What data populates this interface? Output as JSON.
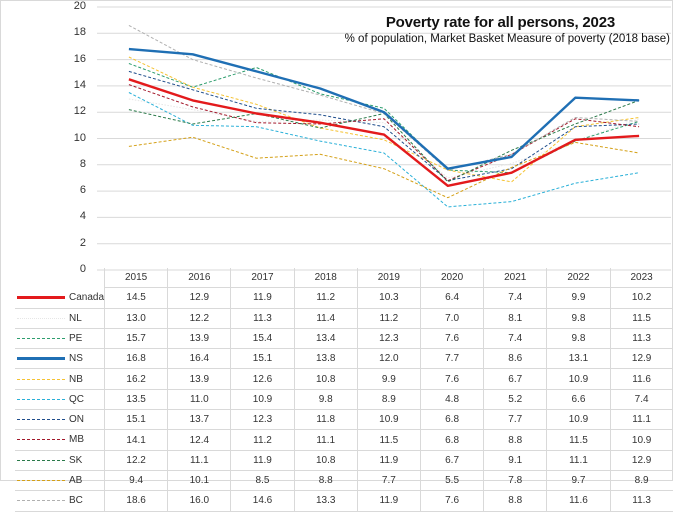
{
  "chart_data": {
    "type": "line",
    "title": "Poverty rate for all persons,  2023",
    "subtitle": "% of population, Market Basket Measure of poverty (2018 base)",
    "xlabel": "",
    "ylabel": "",
    "ylim": [
      0,
      20
    ],
    "yticks": [
      "0",
      "2",
      "4",
      "6",
      "8",
      "10",
      "12",
      "14",
      "16",
      "18",
      "20"
    ],
    "grid": true,
    "legend": "data-table-bottom",
    "categories": [
      "2015",
      "2016",
      "2017",
      "2018",
      "2019",
      "2020",
      "2021",
      "2022",
      "2023"
    ],
    "series": [
      {
        "name": "Canada",
        "color": "#e31a1c",
        "style": "solid-thick",
        "values": [
          14.5,
          12.9,
          11.9,
          11.2,
          10.3,
          6.4,
          7.4,
          9.9,
          10.2
        ]
      },
      {
        "name": "NL",
        "color": "#e6e6e6",
        "style": "dotted",
        "values": [
          13.0,
          12.2,
          11.3,
          11.4,
          11.2,
          7.0,
          8.1,
          9.8,
          11.5
        ]
      },
      {
        "name": "PE",
        "color": "#2e9e6e",
        "style": "dashed",
        "values": [
          15.7,
          13.9,
          15.4,
          13.4,
          12.3,
          7.6,
          7.4,
          9.8,
          11.3
        ]
      },
      {
        "name": "NS",
        "color": "#1f6fb4",
        "style": "solid-thick",
        "values": [
          16.8,
          16.4,
          15.1,
          13.8,
          12.0,
          7.7,
          8.6,
          13.1,
          12.9
        ]
      },
      {
        "name": "NB",
        "color": "#f5c231",
        "style": "dashed",
        "values": [
          16.2,
          13.9,
          12.6,
          10.8,
          9.9,
          7.6,
          6.7,
          10.9,
          11.6
        ]
      },
      {
        "name": "QC",
        "color": "#2ab0d8",
        "style": "dashed",
        "values": [
          13.5,
          11.0,
          10.9,
          9.8,
          8.9,
          4.8,
          5.2,
          6.6,
          7.4
        ]
      },
      {
        "name": "ON",
        "color": "#1f4e8c",
        "style": "dashed",
        "values": [
          15.1,
          13.7,
          12.3,
          11.8,
          10.9,
          6.8,
          7.7,
          10.9,
          11.1
        ]
      },
      {
        "name": "MB",
        "color": "#a3192b",
        "style": "dashed",
        "values": [
          14.1,
          12.4,
          11.2,
          11.1,
          11.5,
          6.8,
          8.8,
          11.5,
          10.9
        ]
      },
      {
        "name": "SK",
        "color": "#2a7a4a",
        "style": "dashed",
        "values": [
          12.2,
          11.1,
          11.9,
          10.8,
          11.9,
          6.7,
          9.1,
          11.1,
          12.9
        ]
      },
      {
        "name": "AB",
        "color": "#d4a017",
        "style": "dashed",
        "values": [
          9.4,
          10.1,
          8.5,
          8.8,
          7.7,
          5.5,
          7.8,
          9.7,
          8.9
        ]
      },
      {
        "name": "BC",
        "color": "#b0b0b0",
        "style": "dashed",
        "values": [
          18.6,
          16.0,
          14.6,
          13.3,
          11.9,
          7.6,
          8.8,
          11.6,
          11.3
        ]
      }
    ]
  }
}
